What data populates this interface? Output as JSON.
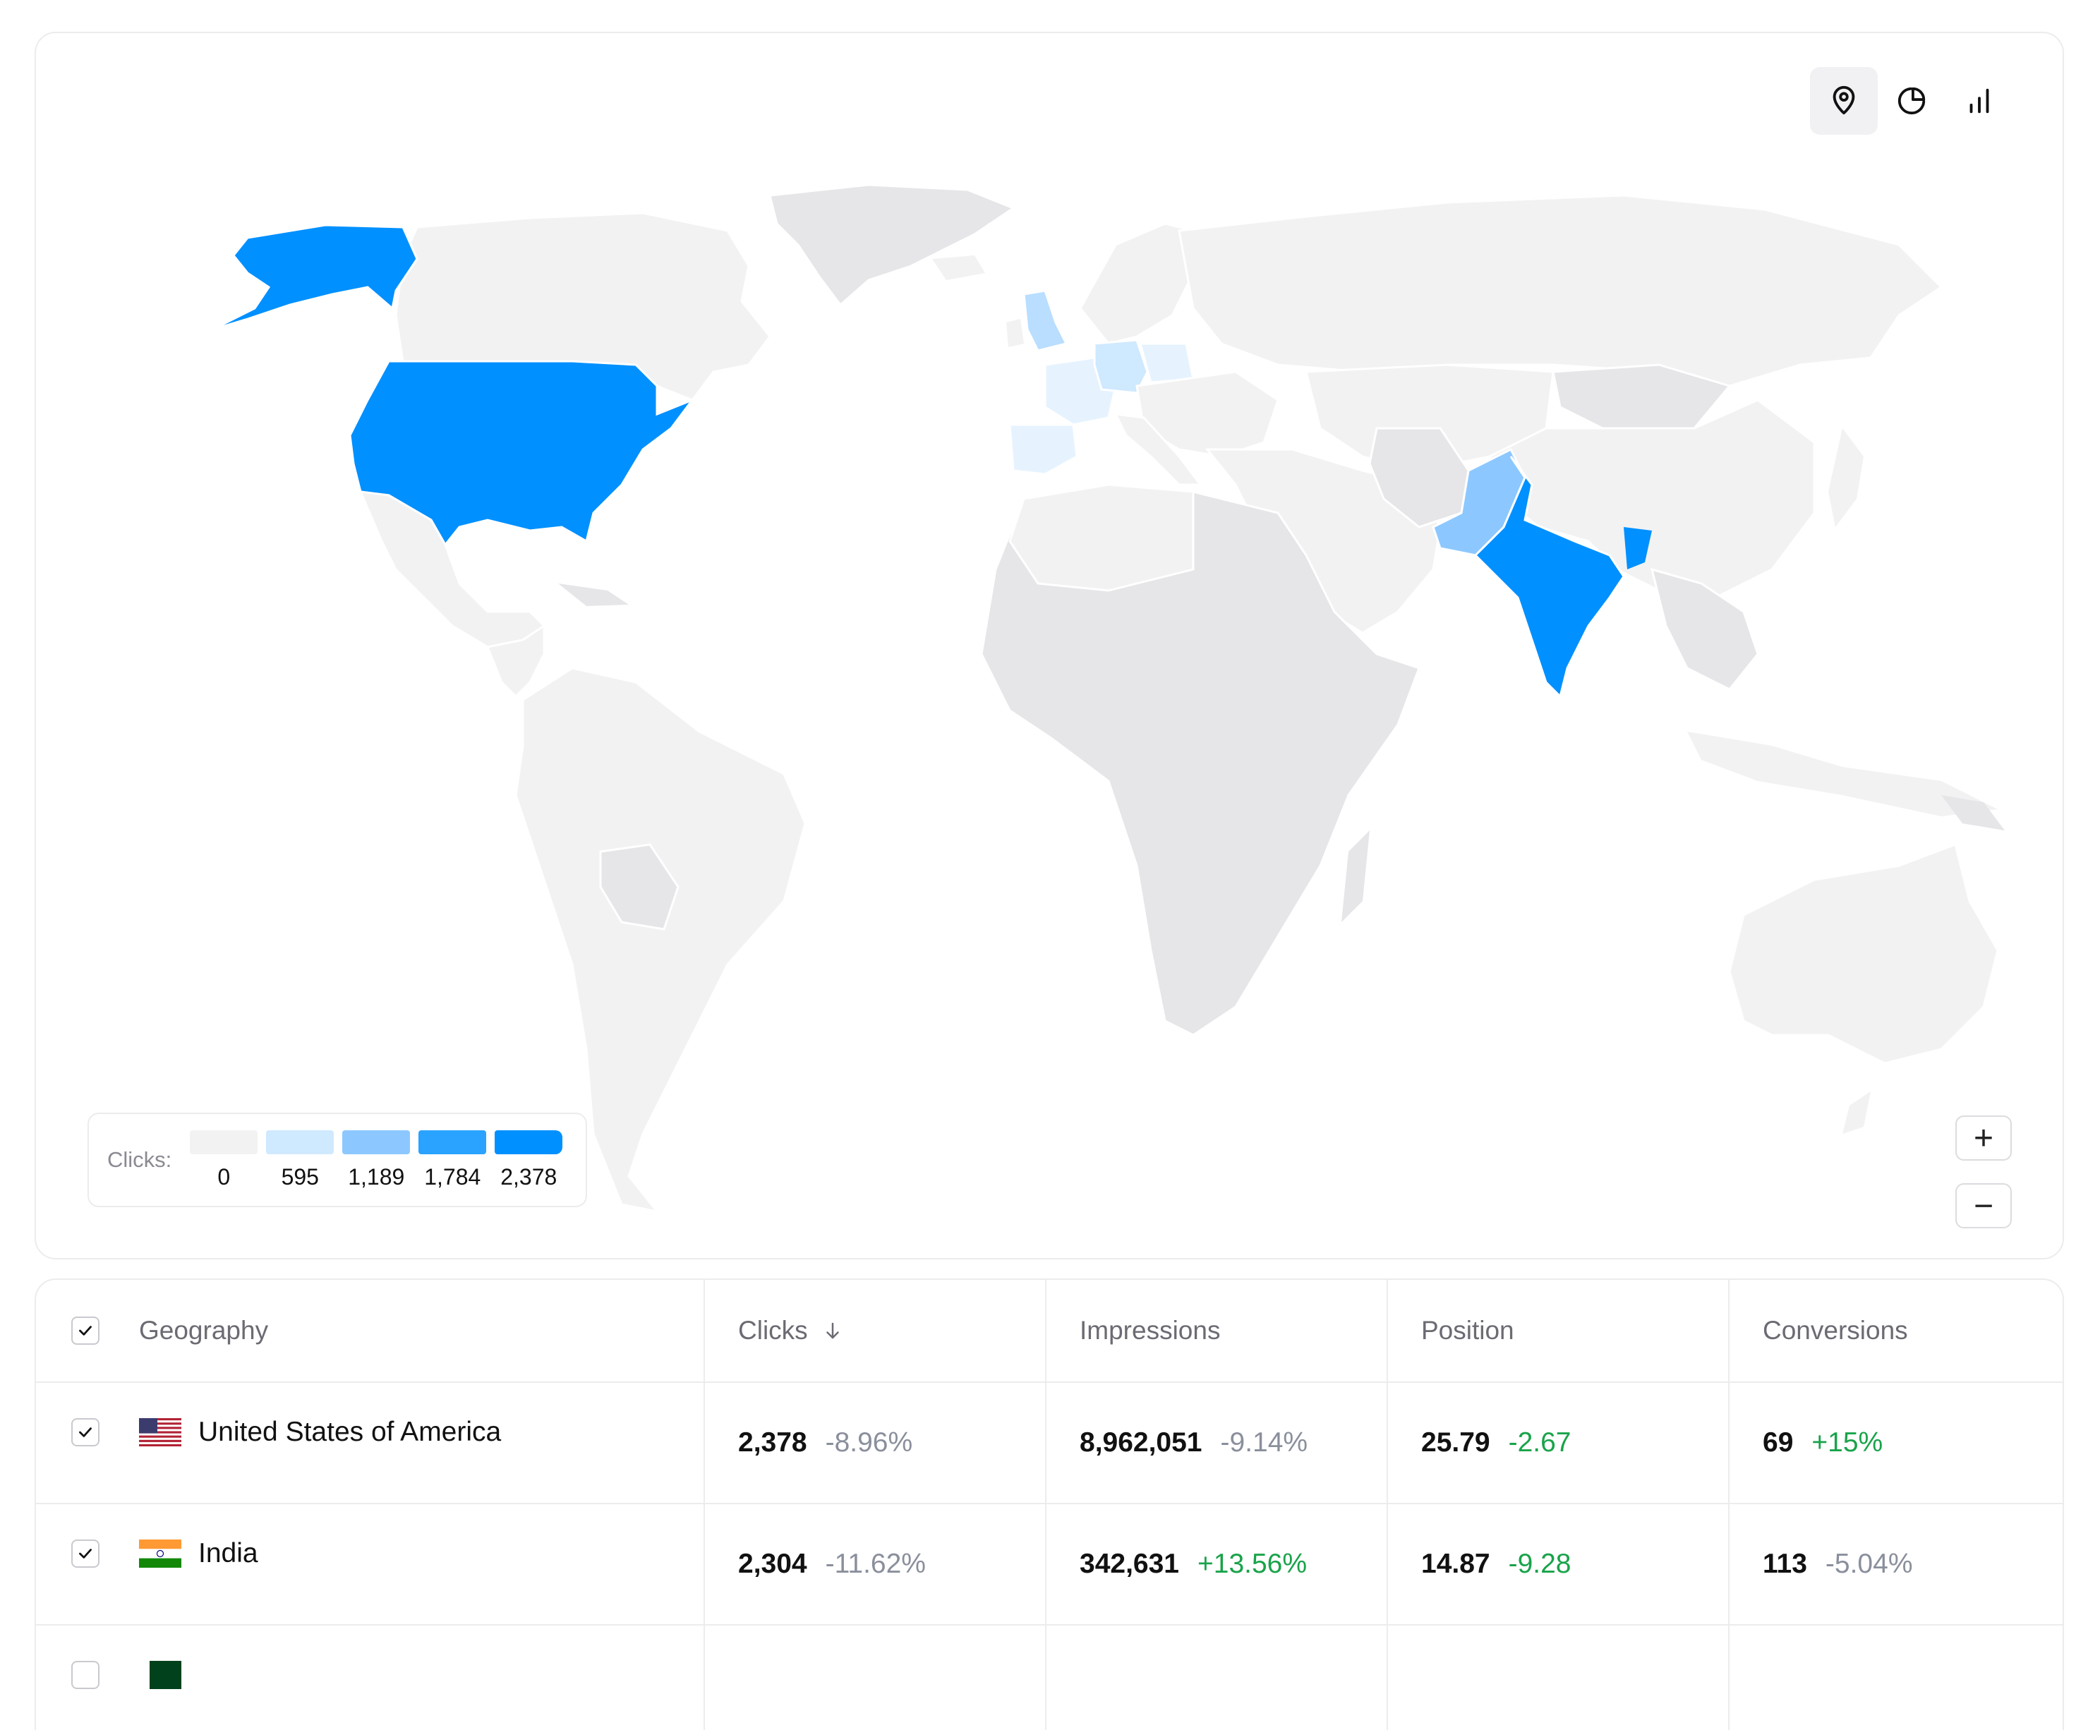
{
  "map_view": {
    "view_buttons": [
      {
        "name": "map",
        "icon": "map-pin-icon",
        "active": true
      },
      {
        "name": "pie",
        "icon": "pie-chart-icon",
        "active": false
      },
      {
        "name": "bar",
        "icon": "bar-chart-icon",
        "active": false
      }
    ],
    "legend": {
      "label": "Clicks:",
      "ticks": [
        "0",
        "595",
        "1,189",
        "1,784",
        "2,378"
      ],
      "colors": [
        "#f2f2f3",
        "#cfe9ff",
        "#8cc8ff",
        "#29a3ff",
        "#0090ff"
      ]
    },
    "zoom_in_label": "+",
    "zoom_out_label": "−",
    "highlighted_countries": [
      {
        "name": "United States of America",
        "color": "#0090ff"
      },
      {
        "name": "India",
        "color": "#0090ff"
      },
      {
        "name": "Pakistan",
        "color": "#8cc8ff"
      },
      {
        "name": "United Kingdom",
        "color": "#b9deff"
      },
      {
        "name": "Germany",
        "color": "#cfe9ff"
      },
      {
        "name": "France",
        "color": "#e6f3ff"
      },
      {
        "name": "Spain",
        "color": "#e6f3ff"
      },
      {
        "name": "Bangladesh",
        "color": "#0090ff"
      }
    ],
    "base_land_color": "#f2f2f3",
    "alt_land_color": "#e6e6e9"
  },
  "table": {
    "headers": {
      "geography": "Geography",
      "clicks": "Clicks",
      "impressions": "Impressions",
      "position": "Position",
      "conversions": "Conversions"
    },
    "sort_icon": "arrow-down-icon",
    "rows": [
      {
        "country": "United States of America",
        "flag": "us-flag-icon",
        "clicks": "2,378",
        "clicks_delta": "-8.96%",
        "impressions": "8,962,051",
        "impressions_delta": "-9.14%",
        "position": "25.79",
        "position_delta": "-2.67",
        "conversions": "69",
        "conversions_delta": "+15%"
      },
      {
        "country": "India",
        "flag": "india-flag-icon",
        "clicks": "2,304",
        "clicks_delta": "-11.62%",
        "impressions": "342,631",
        "impressions_delta": "+13.56%",
        "position": "14.87",
        "position_delta": "-9.28",
        "conversions": "113",
        "conversions_delta": "-5.04%"
      }
    ]
  }
}
